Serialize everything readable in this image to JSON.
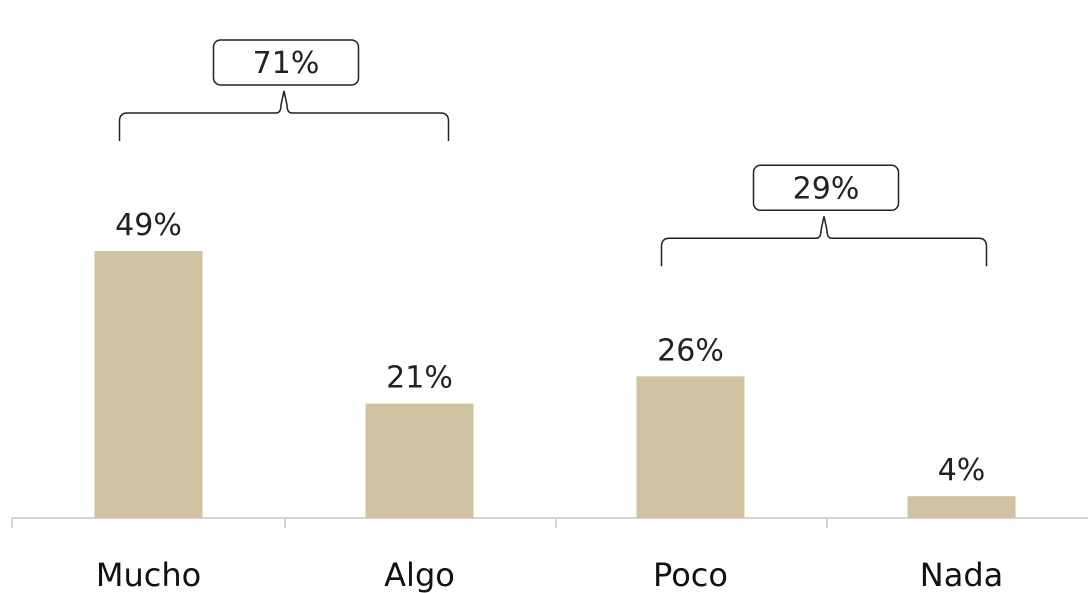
{
  "chart_data": {
    "type": "bar",
    "categories": [
      "Mucho",
      "Algo",
      "Poco",
      "Nada"
    ],
    "values": [
      49,
      21,
      26,
      4
    ],
    "value_labels": [
      "49%",
      "21%",
      "26%",
      "4%"
    ],
    "ylim": [
      0,
      50
    ],
    "grid": false,
    "legend": "none",
    "bar_color": "#cfc3a1",
    "axis_color": "#d4d4d4",
    "groups": [
      {
        "categories": [
          "Mucho",
          "Algo"
        ],
        "label": "71%"
      },
      {
        "categories": [
          "Poco",
          "Nada"
        ],
        "label": "29%"
      }
    ]
  }
}
